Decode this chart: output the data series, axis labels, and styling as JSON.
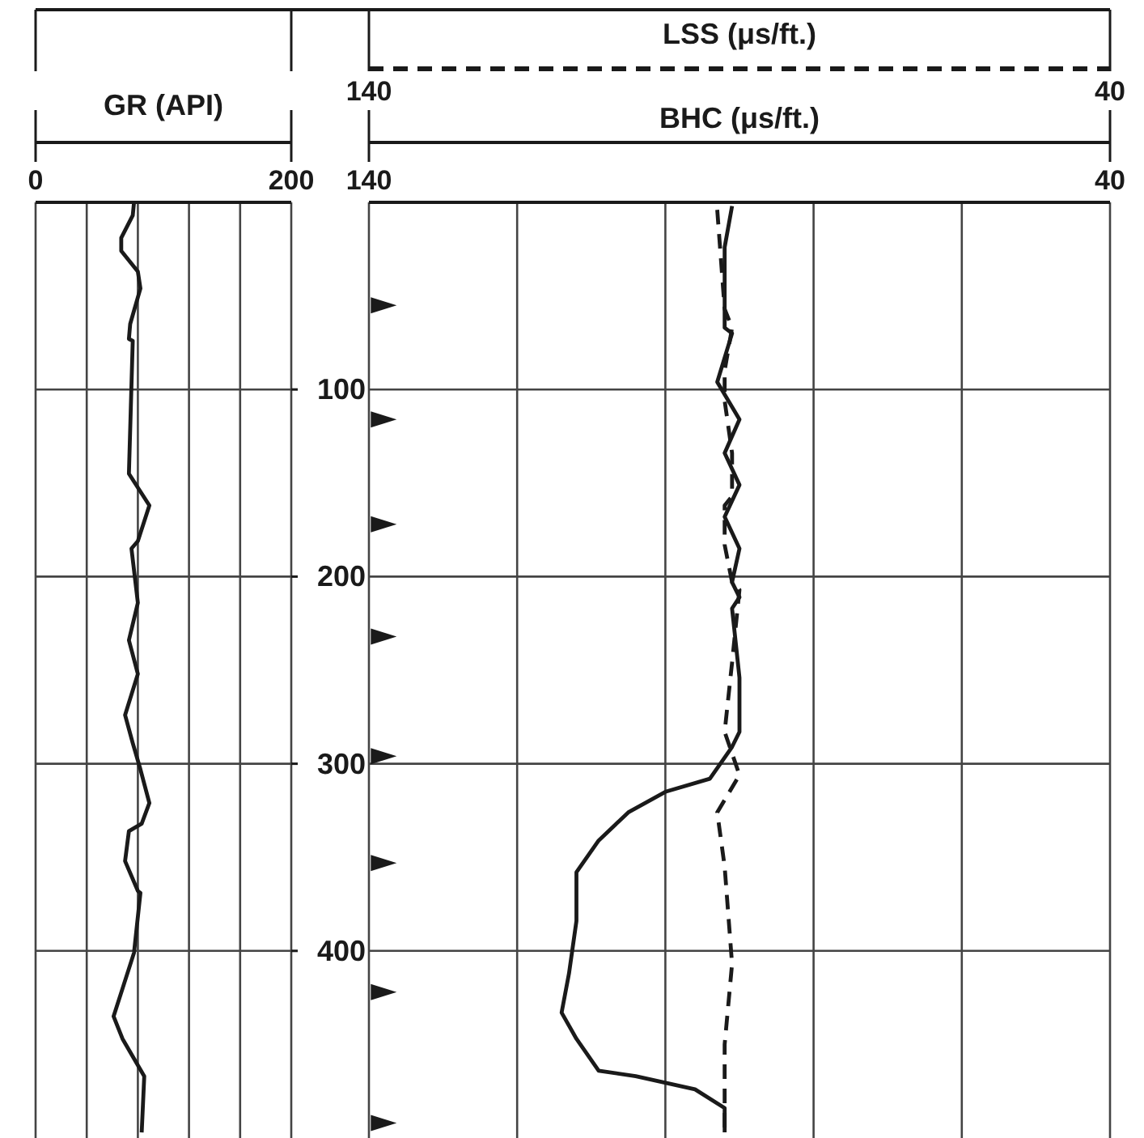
{
  "chart_data": [
    {
      "type": "line",
      "orientation": "horizontal",
      "xlabel": "GR (API)",
      "xlim": [
        0,
        200
      ],
      "xticks": [
        0,
        {
          "value": 40,
          "label": null
        },
        {
          "value": 80,
          "label": null
        },
        {
          "value": 120,
          "label": null
        },
        {
          "value": 160,
          "label": null
        },
        200
      ],
      "ylim": [
        500,
        0
      ],
      "yticks": [
        {
          "value": 100,
          "label": null
        },
        {
          "value": 200,
          "label": null
        },
        {
          "value": 300,
          "label": null
        },
        {
          "value": 400,
          "label": null
        }
      ],
      "tick_labels": "x",
      "grid": true,
      "series": [
        {
          "color": "#1a1a1a",
          "x": [
            0,
            7,
            19,
            26,
            37,
            46,
            65,
            73,
            74,
            145,
            162,
            181,
            185,
            214,
            234,
            252,
            274,
            289,
            303,
            321,
            332,
            336,
            352,
            368,
            369,
            401,
            435,
            447,
            467,
            497
          ],
          "values": [
            77,
            76,
            67,
            67,
            80,
            82,
            74,
            73,
            76,
            73,
            89,
            80,
            75,
            80,
            73,
            80,
            70,
            76,
            82,
            89,
            83,
            73,
            70,
            80,
            82,
            77,
            61,
            68,
            85,
            83
          ]
        }
      ]
    },
    {
      "type": "line",
      "orientation": "horizontal",
      "xlabel": "BHC (μs/ft.)",
      "x2label": "LSS (μs/ft.)",
      "xlim": [
        140,
        40
      ],
      "xticks": [
        140,
        {
          "value": 120,
          "label": null
        },
        {
          "value": 100,
          "label": null
        },
        {
          "value": 80,
          "label": null
        },
        {
          "value": 60,
          "label": null
        },
        40
      ],
      "x2lim": [
        140,
        40
      ],
      "x2ticks": [
        140,
        40
      ],
      "ylim": [
        500,
        0
      ],
      "yticks": [
        100,
        200,
        300,
        400
      ],
      "grid": true,
      "series": [
        {
          "color": "#1a1a1a",
          "line_style": "solid",
          "x": [
            2,
            24,
            45,
            67,
            70,
            96,
            116,
            134,
            151,
            168,
            185,
            203,
            211,
            217,
            254,
            283,
            291,
            308,
            315,
            326,
            341,
            358,
            384,
            412,
            433,
            447,
            464,
            467,
            474,
            484,
            497
          ],
          "values": [
            91,
            92,
            92,
            92,
            91,
            93,
            90,
            92,
            90,
            92,
            90,
            91,
            90,
            91,
            90,
            90,
            91,
            94,
            100,
            105,
            109,
            112,
            112,
            113,
            114,
            112,
            109,
            104,
            96,
            92,
            92
          ]
        },
        {
          "color": "#1a1a1a",
          "line_style": "dashed",
          "axis": "x2",
          "x": [
            4,
            57,
            67,
            90,
            106,
            134,
            157,
            162,
            181,
            183,
            203,
            207,
            246,
            283,
            306,
            326,
            355,
            407,
            450,
            478,
            497
          ],
          "values": [
            93,
            92,
            91,
            92,
            92,
            91,
            91,
            92,
            92,
            92,
            91,
            90,
            91,
            92,
            90,
            93,
            92,
            91,
            92,
            92,
            92
          ]
        },
        {
          "type": "scatter",
          "marker": "triangle",
          "color": "#1a1a1a",
          "x": [
            55,
            116,
            172,
            232,
            296,
            353,
            422,
            492
          ],
          "values": [
            138,
            138,
            138,
            138,
            138,
            138,
            138,
            138
          ]
        }
      ]
    }
  ]
}
